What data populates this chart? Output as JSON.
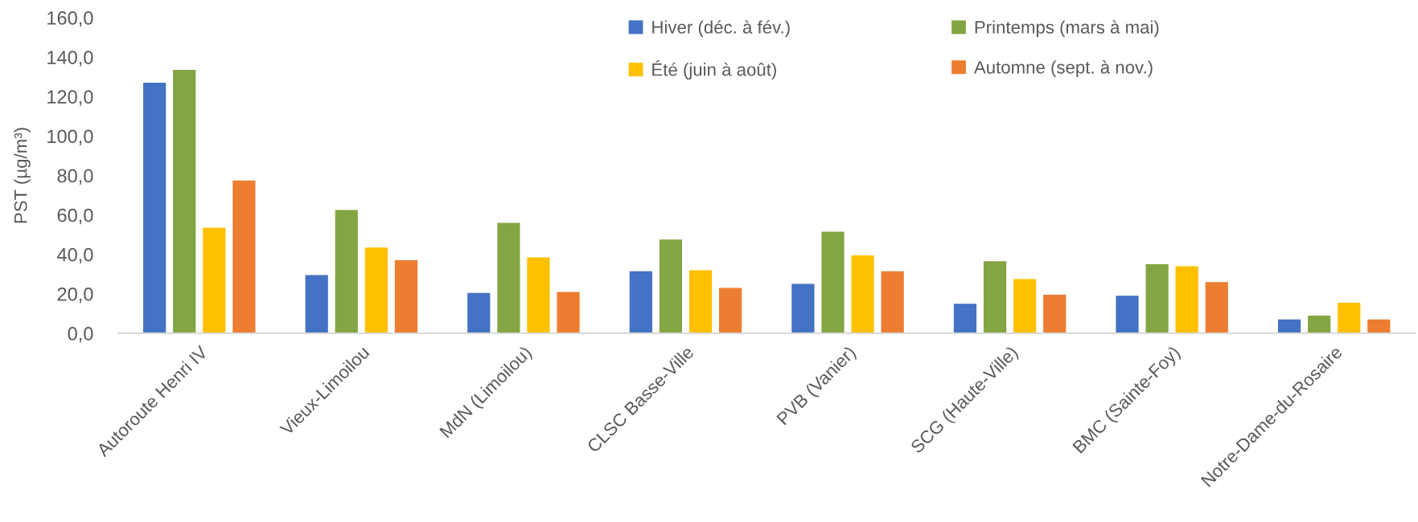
{
  "chart_data": {
    "type": "bar",
    "ylabel": "PST (µg/m³)",
    "categories": [
      "Autoroute Henri IV",
      "Vieux-Limoilou",
      "MdN (Limoilou)",
      "CLSC Basse-Ville",
      "PVB (Vanier)",
      "SCG (Haute-Ville)",
      "BMC (Sainte-Foy)",
      "Notre-Dame-du-Rosaire"
    ],
    "series": [
      {
        "name": "Hiver (déc. à fév.)",
        "color": "#4472c4",
        "values": [
          127,
          29.5,
          20.5,
          31.5,
          25,
          15,
          19,
          7
        ]
      },
      {
        "name": "Printemps (mars à mai)",
        "color": "#84a543",
        "values": [
          133.5,
          62.5,
          56,
          47.5,
          51.5,
          36.5,
          35,
          9
        ]
      },
      {
        "name": "Été (juin à août)",
        "color": "#ffc000",
        "values": [
          53.5,
          43.5,
          38.5,
          32,
          39.5,
          27.5,
          34,
          15.5
        ]
      },
      {
        "name": "Automne (sept. à nov.)",
        "color": "#ed7d31",
        "values": [
          77.5,
          37,
          21,
          23,
          31.5,
          19.5,
          26,
          7
        ]
      }
    ],
    "ylim": [
      0,
      160
    ],
    "yticks": [
      {
        "value": 0,
        "label": "0,0"
      },
      {
        "value": 20,
        "label": "20,0"
      },
      {
        "value": 40,
        "label": "40,0"
      },
      {
        "value": 60,
        "label": "60,0"
      },
      {
        "value": 80,
        "label": "80,0"
      },
      {
        "value": 100,
        "label": "100,0"
      },
      {
        "value": 120,
        "label": "120,0"
      },
      {
        "value": 140,
        "label": "140,0"
      },
      {
        "value": 160,
        "label": "160,0"
      }
    ],
    "grid": false,
    "legend": "top"
  }
}
